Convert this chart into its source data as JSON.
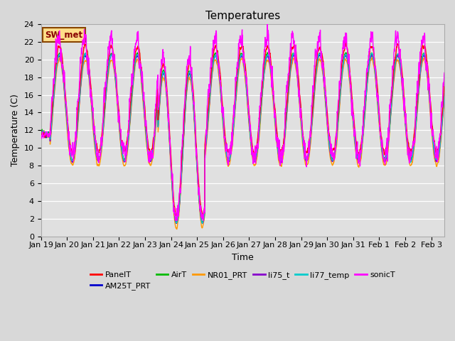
{
  "title": "Temperatures",
  "xlabel": "Time",
  "ylabel": "Temperature (C)",
  "ylim": [
    0,
    24
  ],
  "yticks": [
    0,
    2,
    4,
    6,
    8,
    10,
    12,
    14,
    16,
    18,
    20,
    22,
    24
  ],
  "bg_color": "#d8d8d8",
  "plot_bg_color": "#e0e0e0",
  "series": [
    {
      "name": "PanelT",
      "color": "#ff0000",
      "lw": 1.0,
      "zorder": 5
    },
    {
      "name": "AM25T_PRT",
      "color": "#0000cc",
      "lw": 1.0,
      "zorder": 4
    },
    {
      "name": "AirT",
      "color": "#00bb00",
      "lw": 1.0,
      "zorder": 4
    },
    {
      "name": "NR01_PRT",
      "color": "#ff9900",
      "lw": 1.0,
      "zorder": 4
    },
    {
      "name": "li75_t",
      "color": "#8800cc",
      "lw": 1.0,
      "zorder": 4
    },
    {
      "name": "li77_temp",
      "color": "#00cccc",
      "lw": 1.0,
      "zorder": 4
    },
    {
      "name": "sonicT",
      "color": "#ff00ff",
      "lw": 1.0,
      "zorder": 6
    }
  ],
  "annotation_text": "SW_met",
  "annotation_bg": "#ffdd88",
  "annotation_border": "#884400",
  "xtick_labels": [
    "Jan 19",
    "Jan 20",
    "Jan 21",
    "Jan 22",
    "Jan 23",
    "Jan 24",
    "Jan 25",
    "Jan 26",
    "Jan 27",
    "Jan 28",
    "Jan 29",
    "Jan 30",
    "Jan 31",
    "Feb 1",
    "Feb 2",
    "Feb 3"
  ],
  "title_fontsize": 11,
  "axis_fontsize": 9,
  "tick_fontsize": 8,
  "num_days": 15.5,
  "pts_per_day": 144
}
